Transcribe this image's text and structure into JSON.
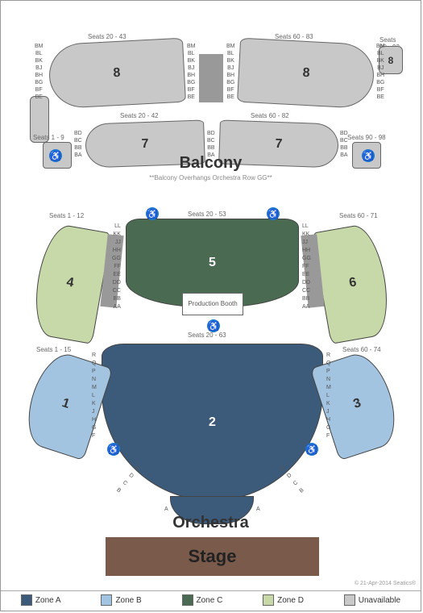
{
  "balcony": {
    "label": "Balcony",
    "note": "**Balcony Overhangs Orchestra Row GG**",
    "sections": {
      "s8_left": {
        "num": "8",
        "seat_range": "Seats 20 - 43"
      },
      "s8_right": {
        "num": "8",
        "seat_range": "Seats 60 - 83"
      },
      "s8_sm_left": {
        "num": ""
      },
      "s8_sm_right": {
        "num": "8",
        "seat_range": "Seats 90 - 92"
      },
      "s7_left": {
        "num": "7",
        "seat_range": "Seats 20 - 42"
      },
      "s7_right": {
        "num": "7",
        "seat_range": "Seats 60 - 82"
      },
      "s7_sm_left": {
        "num": "7",
        "seat_range": "Seats 1 - 9"
      },
      "s7_sm_right": {
        "num": "7",
        "seat_range": "Seats 90 - 98"
      }
    },
    "rows_8": [
      "BM",
      "BL",
      "BK",
      "BJ",
      "BH",
      "BG",
      "BF",
      "BE"
    ],
    "rows_7": [
      "BD",
      "BC",
      "BB",
      "BA"
    ]
  },
  "orchestra": {
    "label": "Orchestra",
    "prod_booth": "Production Booth",
    "sections": {
      "s1": {
        "num": "1",
        "seat_range": "Seats 1 - 15"
      },
      "s2": {
        "num": "2",
        "seat_range": "Seats 20 - 63"
      },
      "s3": {
        "num": "3",
        "seat_range": "Seats 60 - 74"
      },
      "s4": {
        "num": "4",
        "seat_range": "Seats 1 - 12"
      },
      "s5": {
        "num": "5",
        "seat_range": "Seats 20 - 53"
      },
      "s6": {
        "num": "6",
        "seat_range": "Seats 60 - 71"
      }
    },
    "rows_upper": [
      "LL",
      "KK",
      "JJ",
      "HH",
      "GG",
      "FF",
      "EE",
      "DD",
      "CC",
      "BB",
      "AA"
    ],
    "rows_lower": [
      "R",
      "Q",
      "P",
      "N",
      "M",
      "L",
      "K",
      "J",
      "H",
      "G",
      "F"
    ],
    "rows_front": [
      "E",
      "D",
      "C",
      "B",
      "A"
    ]
  },
  "stage": {
    "label": "Stage"
  },
  "legend": {
    "items": [
      {
        "label": "Zone A",
        "color": "#3c5a7a"
      },
      {
        "label": "Zone B",
        "color": "#a2c4e0"
      },
      {
        "label": "Zone C",
        "color": "#4a6b52"
      },
      {
        "label": "Zone D",
        "color": "#c7d9a8"
      },
      {
        "label": "Unavailable",
        "color": "#c8c8c8"
      }
    ]
  },
  "copyright": "© 21-Apr-2014 Seatics®"
}
